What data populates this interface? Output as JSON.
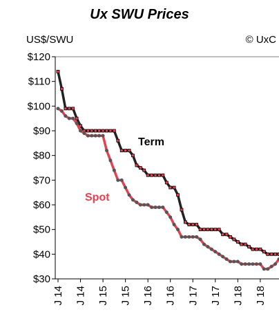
{
  "chart_data": {
    "type": "line",
    "title": "Ux SWU Prices",
    "y_label": "US$/SWU",
    "source": "© UxC",
    "categories": [
      "J 14",
      null,
      null,
      null,
      null,
      null,
      "J 14",
      null,
      null,
      null,
      null,
      null,
      "J 15",
      null,
      null,
      null,
      null,
      null,
      "J 15",
      null,
      null,
      null,
      null,
      null,
      "J 16",
      null,
      null,
      null,
      null,
      null,
      "J 16",
      null,
      null,
      null,
      null,
      null,
      "J 17",
      null,
      null,
      null,
      null,
      null,
      "J 17",
      null,
      null,
      null,
      null,
      null,
      "J 18",
      null,
      null,
      null,
      null,
      null,
      "J 18",
      null,
      null,
      null,
      null,
      null
    ],
    "series": [
      {
        "name": "Term",
        "color": "#222222",
        "marker_color": "#e8404f",
        "values": [
          114,
          107,
          99,
          99,
          99,
          95,
          92,
          90,
          90,
          90,
          90,
          90,
          90,
          90,
          90,
          90,
          86,
          82,
          82,
          82,
          80,
          76,
          75,
          74,
          72,
          72,
          72,
          72,
          72,
          69,
          67,
          67,
          64,
          58,
          53,
          52,
          52,
          52,
          50,
          50,
          50,
          50,
          50,
          50,
          48,
          48,
          47,
          46,
          45,
          44,
          44,
          43,
          42,
          42,
          42,
          41,
          40,
          40,
          40,
          40
        ]
      },
      {
        "name": "Spot",
        "color": "#e8404f",
        "marker_color": "#555555",
        "values": [
          99,
          98,
          96,
          95,
          95,
          93,
          90,
          89,
          88,
          88,
          88,
          88,
          88,
          82,
          78,
          74,
          70,
          70,
          67,
          64,
          62,
          61,
          60,
          60,
          60,
          59,
          59,
          59,
          59,
          57,
          55,
          52,
          50,
          47,
          47,
          47,
          47,
          47,
          46,
          44,
          43,
          42,
          41,
          40,
          39,
          38,
          37,
          37,
          37,
          36,
          36,
          36,
          36,
          36,
          36,
          34,
          34,
          35,
          36,
          38
        ]
      }
    ],
    "ylim": [
      30,
      120
    ],
    "yticks": [
      {
        "value": 30,
        "label": "$30"
      },
      {
        "value": 40,
        "label": "$40"
      },
      {
        "value": 50,
        "label": "$50"
      },
      {
        "value": 60,
        "label": "$60"
      },
      {
        "value": 70,
        "label": "$70"
      },
      {
        "value": 80,
        "label": "$80"
      },
      {
        "value": 90,
        "label": "$90"
      },
      {
        "value": 100,
        "label": "$100"
      },
      {
        "value": 110,
        "label": "$110"
      },
      {
        "value": 120,
        "label": "$120"
      }
    ]
  }
}
